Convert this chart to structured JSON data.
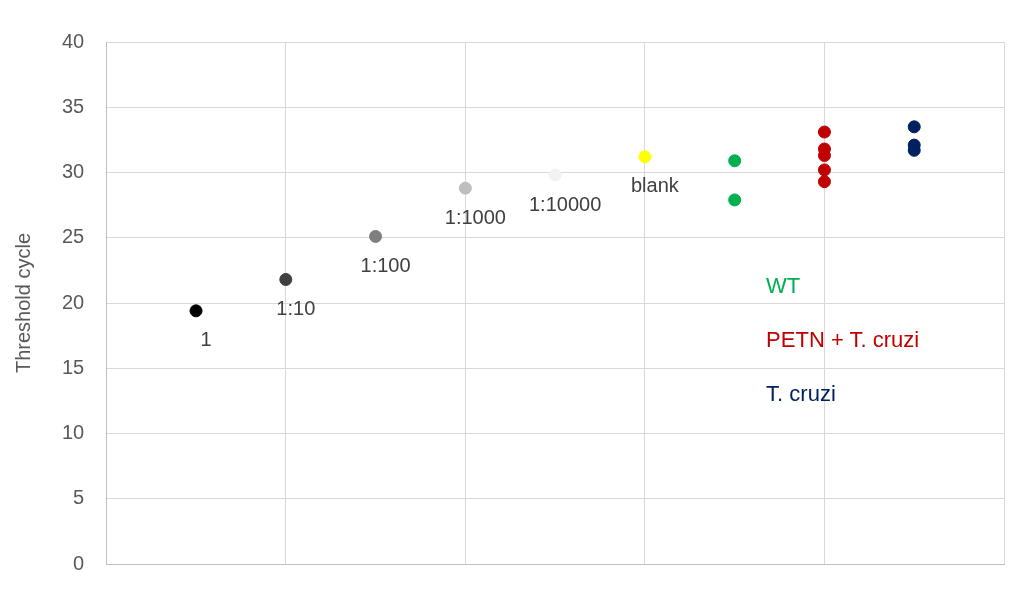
{
  "chart_data": {
    "type": "scatter",
    "ylabel": "Threshold cycle",
    "categories": [
      null,
      null,
      null,
      null,
      null,
      null,
      null,
      null,
      null
    ],
    "series": [
      {
        "values": [
          19.4,
          21.8,
          25.1,
          28.8,
          29.8,
          31.2,
          null,
          null,
          null
        ],
        "colors": [
          "#000000",
          "#404040",
          "#7f7f7f",
          "#bfbfbf",
          "#f2f2f2",
          "#ffff00",
          null,
          null,
          null
        ]
      },
      {
        "name": "WT",
        "color": "#00b050",
        "values": [
          null,
          null,
          null,
          null,
          null,
          null,
          30.9,
          null,
          null
        ]
      },
      {
        "color": "#00b050",
        "values": [
          null,
          null,
          null,
          null,
          null,
          null,
          27.9,
          null,
          null
        ]
      },
      {
        "name": "PETN + T. cruzi",
        "color": "#c00000",
        "values": [
          null,
          null,
          null,
          null,
          null,
          null,
          null,
          33.1,
          null
        ]
      },
      {
        "color": "#c00000",
        "values": [
          null,
          null,
          null,
          null,
          null,
          null,
          null,
          31.8,
          null
        ]
      },
      {
        "color": "#c00000",
        "values": [
          null,
          null,
          null,
          null,
          null,
          null,
          null,
          31.3,
          null
        ]
      },
      {
        "color": "#c00000",
        "values": [
          null,
          null,
          null,
          null,
          null,
          null,
          null,
          30.2,
          null
        ]
      },
      {
        "color": "#c00000",
        "values": [
          null,
          null,
          null,
          null,
          null,
          null,
          null,
          29.3,
          null
        ]
      },
      {
        "name": "T. cruzi",
        "color": "#002060",
        "values": [
          null,
          null,
          null,
          null,
          null,
          null,
          null,
          null,
          33.5
        ]
      },
      {
        "color": "#002060",
        "values": [
          null,
          null,
          null,
          null,
          null,
          null,
          null,
          null,
          32.1
        ]
      },
      {
        "color": "#002060",
        "values": [
          null,
          null,
          null,
          null,
          null,
          null,
          null,
          null,
          31.7
        ]
      }
    ],
    "annotations": [
      "1",
      "1:10",
      "1:100",
      "1:1000",
      "1:10000",
      "blank"
    ],
    "ylim": [
      0,
      40
    ],
    "yticks": [
      0,
      5,
      10,
      15,
      20,
      25,
      30,
      35,
      40
    ],
    "tick_labels": "y",
    "grid": true,
    "marker": "circle"
  }
}
